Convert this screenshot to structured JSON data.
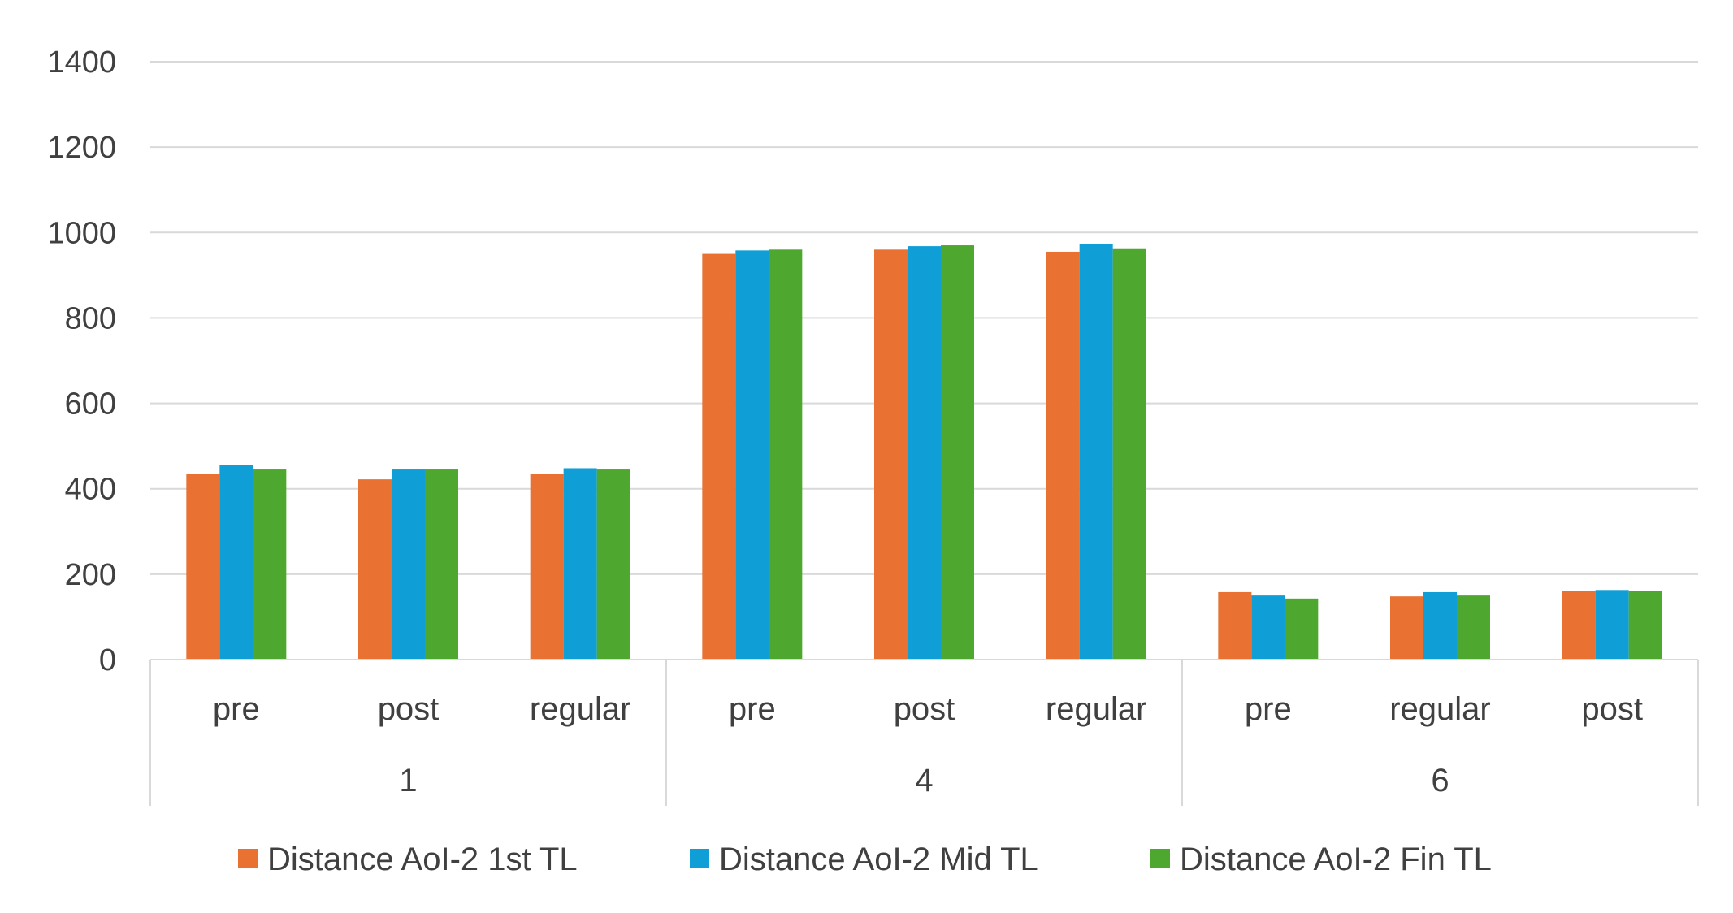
{
  "chart_data": {
    "type": "bar",
    "groups": [
      {
        "label": "1",
        "categories": [
          "pre",
          "post",
          "regular"
        ]
      },
      {
        "label": "4",
        "categories": [
          "pre",
          "post",
          "regular"
        ]
      },
      {
        "label": "6",
        "categories": [
          "pre",
          "regular",
          "post"
        ]
      }
    ],
    "series": [
      {
        "name": "Distance  AoI-2 1st TL",
        "color": "#E97132",
        "values": [
          435,
          422,
          435,
          950,
          960,
          955,
          158,
          148,
          160
        ]
      },
      {
        "name": "Distance  AoI-2 Mid TL",
        "color": "#0F9ED5",
        "values": [
          455,
          445,
          448,
          958,
          968,
          973,
          150,
          158,
          163
        ]
      },
      {
        "name": "Distance  AoI-2 Fin TL",
        "color": "#4EA72E",
        "values": [
          445,
          445,
          445,
          960,
          970,
          963,
          143,
          150,
          160
        ]
      }
    ],
    "yticks": [
      "0",
      "200",
      "400",
      "600",
      "800",
      "1000",
      "1200",
      "1400"
    ],
    "ylim": [
      0,
      1400
    ],
    "grid": true,
    "legend_position": "bottom",
    "title": "",
    "xlabel": "",
    "ylabel": ""
  }
}
